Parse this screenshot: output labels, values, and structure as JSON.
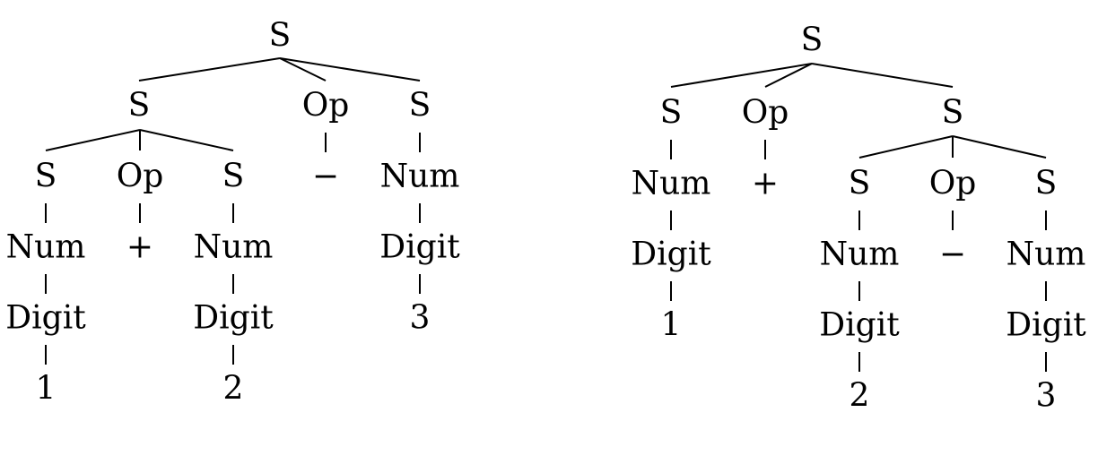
{
  "trees": [
    {
      "name": "parse-tree-left",
      "nodes": [
        {
          "id": "n0",
          "label": "S"
        },
        {
          "id": "n1",
          "label": "S",
          "parent": "n0"
        },
        {
          "id": "n2",
          "label": "Op",
          "parent": "n0"
        },
        {
          "id": "n3",
          "label": "S",
          "parent": "n0"
        },
        {
          "id": "n4",
          "label": "S",
          "parent": "n1"
        },
        {
          "id": "n5",
          "label": "Op",
          "parent": "n1"
        },
        {
          "id": "n6",
          "label": "S",
          "parent": "n1"
        },
        {
          "id": "n7",
          "label": "−",
          "parent": "n2"
        },
        {
          "id": "n8",
          "label": "Num",
          "parent": "n3"
        },
        {
          "id": "n9",
          "label": "Num",
          "parent": "n4"
        },
        {
          "id": "n10",
          "label": "+",
          "parent": "n5"
        },
        {
          "id": "n11",
          "label": "Num",
          "parent": "n6"
        },
        {
          "id": "n12",
          "label": "Digit",
          "parent": "n8"
        },
        {
          "id": "n13",
          "label": "Digit",
          "parent": "n9"
        },
        {
          "id": "n14",
          "label": "Digit",
          "parent": "n11"
        },
        {
          "id": "n15",
          "label": "3",
          "parent": "n12"
        },
        {
          "id": "n16",
          "label": "1",
          "parent": "n13"
        },
        {
          "id": "n17",
          "label": "2",
          "parent": "n14"
        }
      ]
    },
    {
      "name": "parse-tree-right",
      "nodes": [
        {
          "id": "m0",
          "label": "S"
        },
        {
          "id": "m1",
          "label": "S",
          "parent": "m0"
        },
        {
          "id": "m2",
          "label": "Op",
          "parent": "m0"
        },
        {
          "id": "m3",
          "label": "S",
          "parent": "m0"
        },
        {
          "id": "m4",
          "label": "Num",
          "parent": "m1"
        },
        {
          "id": "m5",
          "label": "+",
          "parent": "m2"
        },
        {
          "id": "m6",
          "label": "S",
          "parent": "m3"
        },
        {
          "id": "m7",
          "label": "Op",
          "parent": "m3"
        },
        {
          "id": "m8",
          "label": "S",
          "parent": "m3"
        },
        {
          "id": "m9",
          "label": "Digit",
          "parent": "m4"
        },
        {
          "id": "m10",
          "label": "Num",
          "parent": "m6"
        },
        {
          "id": "m11",
          "label": "−",
          "parent": "m7"
        },
        {
          "id": "m12",
          "label": "Num",
          "parent": "m8"
        },
        {
          "id": "m13",
          "label": "1",
          "parent": "m9"
        },
        {
          "id": "m14",
          "label": "Digit",
          "parent": "m10"
        },
        {
          "id": "m15",
          "label": "Digit",
          "parent": "m12"
        },
        {
          "id": "m16",
          "label": "2",
          "parent": "m14"
        },
        {
          "id": "m17",
          "label": "3",
          "parent": "m15"
        }
      ]
    }
  ]
}
